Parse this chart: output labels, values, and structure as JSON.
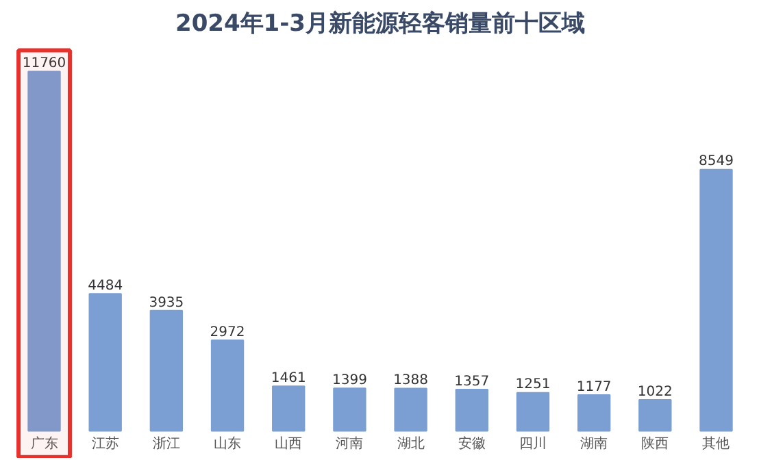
{
  "chart_data": {
    "type": "bar",
    "title": "2024年1-3月新能源轻客销量前十区域",
    "categories": [
      "广东",
      "江苏",
      "浙江",
      "山东",
      "山西",
      "河南",
      "湖北",
      "安徽",
      "四川",
      "湖南",
      "陕西",
      "其他"
    ],
    "values": [
      11760,
      4484,
      3935,
      2972,
      1461,
      1399,
      1388,
      1357,
      1251,
      1177,
      1022,
      8549
    ],
    "color": "#7b9fd2",
    "data_labels": true,
    "tick_labels": "x",
    "grid": false,
    "bands": [
      {
        "axis": "x",
        "from": "广东",
        "to": "广东",
        "color": "#e8302c"
      }
    ]
  }
}
